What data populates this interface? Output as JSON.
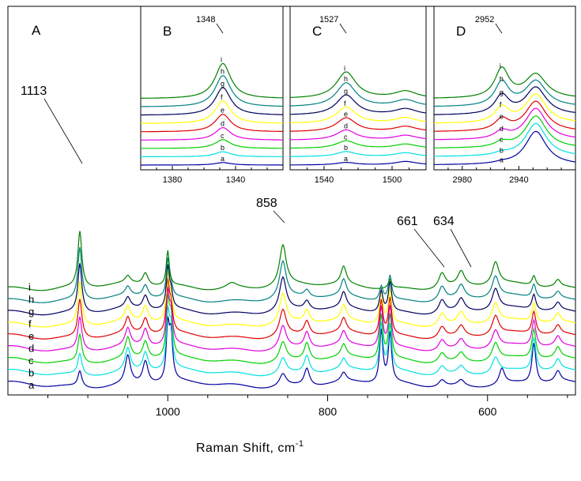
{
  "chart_data": [
    {
      "panel": "A",
      "type": "line",
      "xlabel": "Raman Shift, cm",
      "xlabel_superscript": "-1",
      "x_reversed": true,
      "xlim": [
        1200,
        490
      ],
      "xticks": [
        1000,
        800,
        600
      ],
      "xtick_labels": [
        "1000",
        "800",
        "600"
      ],
      "peak_labels": [
        {
          "text": "1113",
          "x": 1110
        },
        {
          "text": "858",
          "x": 856
        },
        {
          "text": "661",
          "x": 657
        },
        {
          "text": "634",
          "x": 633
        }
      ],
      "series": [
        {
          "name": "a",
          "color": "#0000a0",
          "peaks": [
            [
              1110,
              0.9,
              3
            ],
            [
              1050,
              1.6,
              4
            ],
            [
              1028,
              1.3,
              4
            ],
            [
              1000,
              3.0,
              2.2
            ],
            [
              996,
              2.6,
              2.5
            ],
            [
              856,
              0.7,
              5
            ],
            [
              826,
              1.0,
              4
            ],
            [
              780,
              0.5,
              4
            ],
            [
              733,
              3.0,
              2.5
            ],
            [
              722,
              2.8,
              2.5
            ],
            [
              657,
              0.4,
              5
            ],
            [
              633,
              0.35,
              5
            ],
            [
              582,
              0.9,
              4
            ],
            [
              542,
              2.3,
              3
            ],
            [
              512,
              0.6,
              4
            ]
          ]
        },
        {
          "name": "b",
          "color": "#00e0e0",
          "peaks": [
            [
              1110,
              1.2,
              3
            ],
            [
              1050,
              1.3,
              4
            ],
            [
              1028,
              1.1,
              4
            ],
            [
              1000,
              3.0,
              2.2
            ],
            [
              996,
              2.3,
              2.5
            ],
            [
              856,
              0.9,
              5
            ],
            [
              826,
              1.0,
              4
            ],
            [
              780,
              0.6,
              4
            ],
            [
              733,
              2.7,
              2.5
            ],
            [
              722,
              2.6,
              2.5
            ],
            [
              657,
              0.5,
              5
            ],
            [
              633,
              0.45,
              5
            ],
            [
              590,
              0.9,
              5
            ],
            [
              542,
              1.9,
              3
            ],
            [
              512,
              0.6,
              4
            ]
          ]
        },
        {
          "name": "c",
          "color": "#00d000",
          "peaks": [
            [
              1110,
              1.6,
              3
            ],
            [
              1050,
              1.2,
              4
            ],
            [
              1028,
              1.0,
              4
            ],
            [
              1000,
              3.0,
              2.2
            ],
            [
              996,
              2.2,
              2.5
            ],
            [
              856,
              1.1,
              5
            ],
            [
              826,
              1.0,
              4
            ],
            [
              780,
              0.7,
              4
            ],
            [
              733,
              2.5,
              2.5
            ],
            [
              722,
              2.5,
              2.5
            ],
            [
              657,
              0.55,
              5
            ],
            [
              633,
              0.5,
              5
            ],
            [
              590,
              1.0,
              5
            ],
            [
              542,
              1.7,
              3
            ],
            [
              512,
              0.6,
              4
            ]
          ]
        },
        {
          "name": "d",
          "color": "#e000e0",
          "peaks": [
            [
              1110,
              1.9,
              3
            ],
            [
              1050,
              1.0,
              4
            ],
            [
              1028,
              1.0,
              4
            ],
            [
              1000,
              2.8,
              2.2
            ],
            [
              996,
              1.8,
              2.5
            ],
            [
              856,
              1.3,
              5
            ],
            [
              826,
              0.9,
              4
            ],
            [
              780,
              0.75,
              4
            ],
            [
              733,
              2.3,
              2.5
            ],
            [
              722,
              2.3,
              2.5
            ],
            [
              657,
              0.6,
              5
            ],
            [
              633,
              0.55,
              5
            ],
            [
              590,
              1.0,
              5
            ],
            [
              542,
              1.5,
              3
            ],
            [
              512,
              0.55,
              4
            ]
          ]
        },
        {
          "name": "e",
          "color": "#e00000",
          "peaks": [
            [
              1110,
              2.2,
              3
            ],
            [
              1050,
              0.9,
              4
            ],
            [
              1028,
              0.9,
              4
            ],
            [
              1000,
              2.7,
              2.2
            ],
            [
              996,
              1.5,
              2.5
            ],
            [
              856,
              1.5,
              5
            ],
            [
              826,
              0.8,
              4
            ],
            [
              780,
              0.8,
              4
            ],
            [
              733,
              2.0,
              2.5
            ],
            [
              722,
              2.1,
              2.5
            ],
            [
              657,
              0.65,
              5
            ],
            [
              633,
              0.6,
              5
            ],
            [
              590,
              1.1,
              5
            ],
            [
              542,
              1.3,
              3
            ],
            [
              512,
              0.5,
              4
            ]
          ]
        },
        {
          "name": "f",
          "color": "#ffff00",
          "peaks": [
            [
              1110,
              2.5,
              3
            ],
            [
              1050,
              0.8,
              4
            ],
            [
              1028,
              0.9,
              4
            ],
            [
              1000,
              2.5,
              2.2
            ],
            [
              996,
              1.2,
              2.5
            ],
            [
              856,
              1.7,
              5
            ],
            [
              826,
              0.7,
              4
            ],
            [
              780,
              0.85,
              4
            ],
            [
              733,
              1.8,
              2.5
            ],
            [
              722,
              1.9,
              2.5
            ],
            [
              657,
              0.7,
              5
            ],
            [
              633,
              0.65,
              5
            ],
            [
              590,
              1.1,
              5
            ],
            [
              542,
              1.1,
              3
            ],
            [
              512,
              0.5,
              4
            ]
          ]
        },
        {
          "name": "g",
          "color": "#000060",
          "peaks": [
            [
              1110,
              2.8,
              3
            ],
            [
              1050,
              0.6,
              4
            ],
            [
              1028,
              0.8,
              4
            ],
            [
              1000,
              2.3,
              2.2
            ],
            [
              996,
              0.9,
              2.5
            ],
            [
              856,
              1.9,
              5
            ],
            [
              826,
              0.5,
              4
            ],
            [
              780,
              0.9,
              4
            ],
            [
              733,
              1.2,
              2.5
            ],
            [
              722,
              1.7,
              2.5
            ],
            [
              657,
              0.75,
              5
            ],
            [
              633,
              0.7,
              5
            ],
            [
              590,
              1.2,
              5
            ],
            [
              542,
              0.9,
              3
            ],
            [
              512,
              0.45,
              4
            ]
          ]
        },
        {
          "name": "h",
          "color": "#008080",
          "peaks": [
            [
              1110,
              3.0,
              3
            ],
            [
              1050,
              0.5,
              4
            ],
            [
              1028,
              0.7,
              4
            ],
            [
              1000,
              2.1,
              2.2
            ],
            [
              996,
              0.6,
              2.5
            ],
            [
              856,
              2.1,
              5
            ],
            [
              826,
              0.4,
              4
            ],
            [
              780,
              0.95,
              4
            ],
            [
              733,
              0.8,
              2.5
            ],
            [
              722,
              1.4,
              2.5
            ],
            [
              657,
              0.8,
              5
            ],
            [
              633,
              0.75,
              5
            ],
            [
              590,
              1.2,
              5
            ],
            [
              542,
              0.8,
              3
            ],
            [
              512,
              0.4,
              4
            ]
          ]
        },
        {
          "name": "i",
          "color": "#008000",
          "peaks": [
            [
              1110,
              3.2,
              3
            ],
            [
              1050,
              0.4,
              4
            ],
            [
              1028,
              0.7,
              4
            ],
            [
              1000,
              2.0,
              2.2
            ],
            [
              856,
              2.3,
              5
            ],
            [
              780,
              1.0,
              4
            ],
            [
              722,
              0.5,
              2.5
            ],
            [
              657,
              0.85,
              5
            ],
            [
              633,
              0.8,
              5
            ],
            [
              590,
              1.3,
              5
            ],
            [
              542,
              0.6,
              3
            ],
            [
              512,
              0.4,
              4
            ],
            [
              920,
              0.3,
              8
            ]
          ]
        }
      ]
    },
    {
      "panel": "B",
      "type": "line",
      "x_reversed": true,
      "xlim": [
        1400,
        1310
      ],
      "xticks": [
        1380,
        1340
      ],
      "xtick_labels": [
        "1380",
        "1340"
      ],
      "peak_labels": [
        {
          "text": "1348",
          "x": 1348
        }
      ],
      "peak_center": 1348,
      "peak_width": 6,
      "peak_heights": [
        0.2,
        0.4,
        0.7,
        1.0,
        1.4,
        1.8,
        2.2,
        2.5,
        2.8
      ],
      "series_names": [
        "a",
        "b",
        "c",
        "d",
        "e",
        "f",
        "g",
        "h",
        "i"
      ]
    },
    {
      "panel": "C",
      "type": "line",
      "x_reversed": true,
      "xlim": [
        1560,
        1480
      ],
      "xticks": [
        1540,
        1500
      ],
      "xtick_labels": [
        "1540",
        "1500"
      ],
      "peak_labels": [
        {
          "text": "1527",
          "x": 1527
        }
      ],
      "peak_center": 1527,
      "peak_width": 7,
      "second_peak": 1492,
      "peak_heights": [
        0.2,
        0.4,
        0.6,
        0.8,
        1.1,
        1.3,
        1.6,
        1.9,
        2.1
      ],
      "series_names": [
        "a",
        "b",
        "c",
        "d",
        "e",
        "f",
        "g",
        "h",
        "i"
      ]
    },
    {
      "panel": "D",
      "type": "line",
      "x_reversed": true,
      "xlim": [
        3000,
        2900
      ],
      "xticks": [
        2980,
        2940
      ],
      "xtick_labels": [
        "2980",
        "2940"
      ],
      "peak_labels": [
        {
          "text": "2952",
          "x": 2952
        }
      ],
      "peak_center": 2952,
      "peak_width": 6,
      "second_peak": 2928,
      "peak_heights": [
        0.1,
        0.2,
        0.4,
        0.6,
        0.9,
        1.2,
        1.5,
        1.9,
        2.3
      ],
      "series_names": [
        "a",
        "b",
        "c",
        "d",
        "e",
        "f",
        "g",
        "h",
        "i"
      ]
    }
  ]
}
